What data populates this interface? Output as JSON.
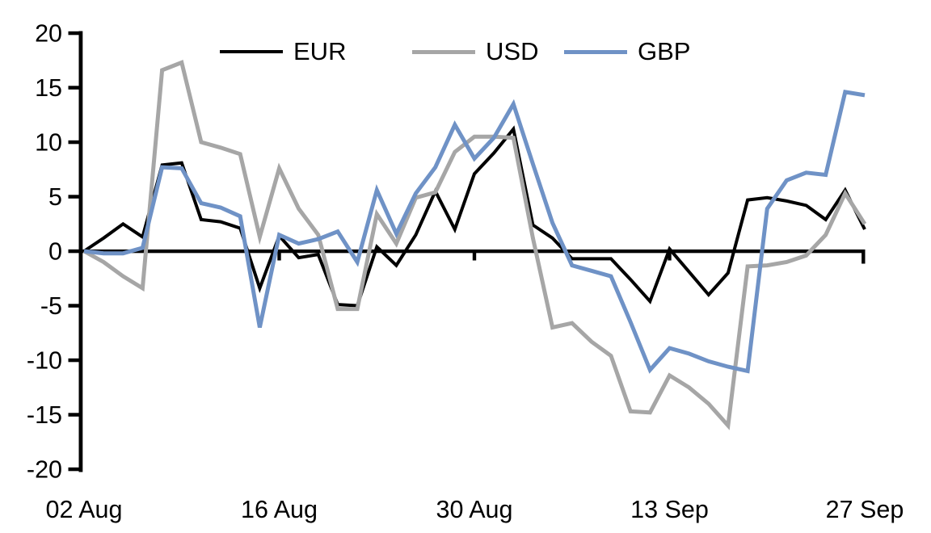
{
  "chart_data": {
    "type": "line",
    "title": "",
    "xlabel": "",
    "ylabel": "",
    "x_unit": "business days from 02 Aug to 27 Sep",
    "n_points": 41,
    "x_tick_positions": [
      0,
      10,
      20,
      30,
      40
    ],
    "x_tick_labels": [
      "02 Aug",
      "16 Aug",
      "30 Aug",
      "13 Sep",
      "27 Sep"
    ],
    "ylim": [
      -20,
      20
    ],
    "ytick_step": 5,
    "ytick_values": [
      20,
      15,
      10,
      5,
      0,
      -5,
      -10,
      -15,
      -20
    ],
    "ytick_labels": [
      "20",
      "15",
      "10",
      "5",
      "0",
      "-5",
      "-10",
      "-15",
      "-20"
    ],
    "grid": false,
    "zero_axis": true,
    "axis_color": "#000000",
    "legend_position": "top-center",
    "series": [
      {
        "name": "EUR",
        "color": "#000000",
        "line_width": 4,
        "values": [
          0,
          1.2,
          2.5,
          1.3,
          7.9,
          8.1,
          2.9,
          2.7,
          2.1,
          -3.4,
          1.4,
          -0.6,
          -0.3,
          -4.9,
          -5.0,
          0.4,
          -1.3,
          1.5,
          5.5,
          2.0,
          7.1,
          9.0,
          11.2,
          2.4,
          1.2,
          -0.7,
          -0.7,
          -0.7,
          -2.6,
          -4.6,
          0.2,
          -1.9,
          -4.0,
          -2.0,
          4.7,
          4.9,
          4.6,
          4.2,
          2.9,
          5.6,
          2.0
        ]
      },
      {
        "name": "USD",
        "color": "#a6a6a6",
        "line_width": 5,
        "values": [
          0,
          -1.0,
          -2.3,
          -3.4,
          16.6,
          17.3,
          10.0,
          9.5,
          8.9,
          1.3,
          7.6,
          3.9,
          1.5,
          -5.3,
          -5.3,
          3.4,
          0.7,
          4.9,
          5.4,
          9.1,
          10.5,
          10.5,
          10.4,
          1.2,
          -7.0,
          -6.6,
          -8.3,
          -9.6,
          -14.7,
          -14.8,
          -11.4,
          -12.5,
          -14.0,
          -16.0,
          -1.4,
          -1.3,
          -1.0,
          -0.4,
          1.5,
          5.3,
          2.5
        ]
      },
      {
        "name": "GBP",
        "color": "#6f92c6",
        "line_width": 5,
        "values": [
          0,
          -0.2,
          -0.2,
          0.3,
          7.7,
          7.6,
          4.4,
          4.0,
          3.2,
          -7.0,
          1.5,
          0.7,
          1.1,
          1.8,
          -1.0,
          5.6,
          1.6,
          5.3,
          7.7,
          11.6,
          8.5,
          10.4,
          13.5,
          8.0,
          2.6,
          -1.3,
          -1.8,
          -2.3,
          -6.5,
          -10.9,
          -8.9,
          -9.4,
          -10.1,
          -10.6,
          -11.0,
          3.9,
          6.5,
          7.2,
          7.0,
          14.6,
          14.3
        ]
      }
    ]
  },
  "legend": {
    "items": [
      {
        "label": "EUR"
      },
      {
        "label": "USD"
      },
      {
        "label": "GBP"
      }
    ]
  }
}
